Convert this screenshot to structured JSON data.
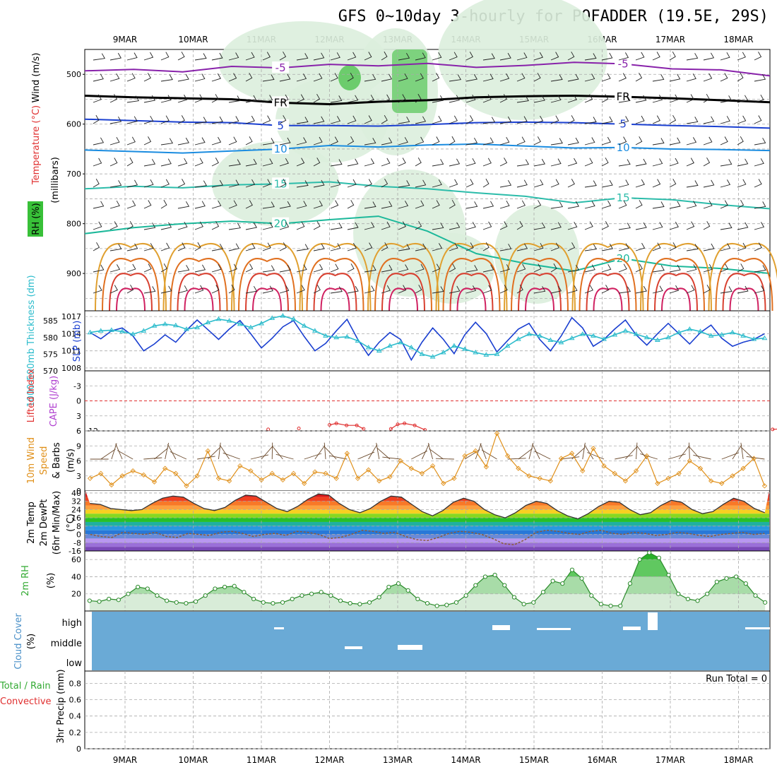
{
  "title": "GFS 0~10day 3-hourly for POFADDER (19.5E, 29S)",
  "dates": [
    "9MAR",
    "10MAR",
    "11MAR",
    "12MAR",
    "13MAR",
    "14MAR",
    "15MAR",
    "16MAR",
    "17MAR",
    "18MAR"
  ],
  "run_total": "Run Total = 0",
  "colors": {
    "grid": "#aaaaaa",
    "slp": "#1a3fd0",
    "thickness": "#2cbccc",
    "li": "#e03030",
    "wind": "#e0901a",
    "barb": "#6b4a2c",
    "rh": "#33aa33",
    "cloud": "#6aaad6",
    "purple": "#8822aa"
  },
  "chart_data": [
    {
      "type": "contour",
      "panel": "upper-air",
      "ylabel": "(millibars)",
      "side_labels": [
        "Wind (m/s)",
        "Temperature (°C)",
        "RH (%)"
      ],
      "y_ticks": [
        500,
        600,
        700,
        800,
        900
      ],
      "ylim": [
        450,
        975
      ],
      "y_scale": "pressure-reversed",
      "grid": true,
      "x_dashed_levels": [
        550,
        650,
        750,
        850,
        950
      ],
      "isotherms": [
        {
          "label": "-5",
          "color": "#8822aa",
          "levels": [
            493,
            490,
            495,
            484,
            487,
            480,
            483,
            478,
            486,
            482,
            476,
            479,
            489,
            491,
            503
          ]
        },
        {
          "label": "FR",
          "color": "#000000",
          "levels": [
            543,
            546,
            548,
            550,
            557,
            560,
            555,
            552,
            546,
            544,
            543,
            545,
            548,
            552,
            556
          ]
        },
        {
          "label": "5",
          "color": "#1a3fd0",
          "levels": [
            590,
            593,
            596,
            597,
            603,
            603,
            604,
            601,
            597,
            596,
            597,
            600,
            603,
            605,
            608
          ]
        },
        {
          "label": "10",
          "color": "#1a8ce0",
          "levels": [
            652,
            655,
            658,
            654,
            650,
            643,
            646,
            642,
            640,
            644,
            648,
            647,
            650,
            651,
            653
          ]
        },
        {
          "label": "15",
          "color": "#2cbcaa",
          "levels": [
            730,
            725,
            728,
            722,
            720,
            716,
            725,
            730,
            738,
            745,
            758,
            748,
            752,
            762,
            770
          ]
        },
        {
          "label": "20",
          "color": "#1cb89a",
          "levels": [
            820,
            808,
            800,
            795,
            800,
            792,
            785,
            815,
            860,
            880,
            895,
            870,
            885,
            890,
            900
          ]
        }
      ],
      "contour_labels": [
        "-5",
        "-5",
        "FR",
        "FR",
        "FR",
        "5",
        "5",
        "10",
        "10",
        "15",
        "15",
        "20"
      ]
    },
    {
      "type": "line",
      "panel": "pressure-thickness",
      "ylabel_left": "1000-500mb Thickness (dm)",
      "ylabel_right": "SLP (mb)",
      "y_ticks_left": [
        570,
        575,
        580,
        585
      ],
      "y_ticks_right": [
        1008,
        1011,
        1014,
        1017
      ],
      "ylim_left": [
        570,
        588
      ],
      "ylim_right": [
        1007.5,
        1018
      ],
      "series": [
        {
          "name": "SLP (mb)",
          "axis": "right",
          "color": "#1a3fd0",
          "values": [
            1014.2,
            1013.1,
            1014.5,
            1015.0,
            1013.6,
            1011.0,
            1012.2,
            1013.8,
            1012.5,
            1014.6,
            1016.4,
            1014.7,
            1013.0,
            1014.8,
            1016.3,
            1014.0,
            1011.5,
            1013.2,
            1015.2,
            1016.3,
            1013.5,
            1011.0,
            1012.3,
            1014.5,
            1016.5,
            1013.0,
            1010.2,
            1012.5,
            1014.2,
            1013.0,
            1009.4,
            1012.5,
            1015.0,
            1013.0,
            1010.5,
            1013.8,
            1016.0,
            1014.0,
            1010.8,
            1012.8,
            1014.8,
            1015.8,
            1013.0,
            1011.0,
            1013.6,
            1016.8,
            1015.0,
            1011.8,
            1013.0,
            1014.8,
            1016.4,
            1013.8,
            1012.0,
            1014.0,
            1015.8,
            1014.0,
            1012.2,
            1014.2,
            1015.5,
            1013.2,
            1011.8,
            1012.5,
            1013.0,
            1014.0
          ]
        },
        {
          "name": "1000-500mb Thickness (dm)",
          "axis": "left",
          "color": "#2cbccc",
          "values": [
            581.5,
            582.0,
            582.2,
            581.8,
            581.0,
            582.0,
            583.5,
            584.0,
            583.6,
            582.5,
            583.0,
            584.5,
            585.5,
            585.0,
            584.0,
            583.0,
            584.2,
            585.8,
            586.5,
            585.5,
            583.5,
            582.0,
            580.5,
            580.0,
            580.2,
            579.0,
            577.0,
            576.0,
            577.5,
            578.5,
            577.0,
            575.0,
            574.2,
            575.5,
            577.5,
            576.5,
            575.5,
            574.8,
            575.0,
            577.5,
            579.5,
            581.0,
            580.5,
            579.2,
            578.5,
            579.8,
            581.0,
            580.5,
            579.5,
            580.8,
            582.0,
            581.0,
            580.0,
            579.2,
            580.0,
            581.5,
            582.5,
            581.8,
            580.5,
            580.8,
            581.5,
            580.5,
            579.5,
            579.8
          ]
        }
      ]
    },
    {
      "type": "line",
      "panel": "stability",
      "ylabel_left": "Lifted Index",
      "ylabel_right": "CAPE (J/kg)",
      "y_ticks": [
        -3,
        0,
        3,
        6
      ],
      "ylim": [
        -6,
        6
      ],
      "zero_line": 0,
      "series": [
        {
          "name": "Lifted Index",
          "color": "#e03030",
          "points": [
            [
              2.1,
              5.7
            ],
            [
              2.55,
              5.5
            ],
            [
              3.0,
              4.8
            ],
            [
              3.1,
              4.5
            ],
            [
              3.25,
              4.9
            ],
            [
              3.4,
              4.9
            ],
            [
              3.5,
              5.6
            ],
            [
              3.9,
              5.6
            ],
            [
              4.0,
              4.7
            ],
            [
              4.1,
              4.5
            ],
            [
              4.25,
              4.9
            ],
            [
              4.4,
              5.8
            ],
            [
              9.5,
              5.7
            ],
            [
              9.6,
              5.6
            ]
          ]
        }
      ]
    },
    {
      "type": "line",
      "panel": "surface-wind",
      "ylabel": "10m Wind Speed & Barbs (m/s)",
      "y_ticks": [
        0,
        3,
        6,
        9,
        12
      ],
      "ylim": [
        0,
        12
      ],
      "series": [
        {
          "name": "10m Wind Speed",
          "color": "#e0901a",
          "values": [
            2.5,
            3.5,
            1.2,
            3.0,
            4.0,
            3.2,
            1.8,
            4.5,
            3.5,
            1.0,
            3.0,
            8.0,
            2.5,
            2.0,
            5.0,
            4.0,
            2.2,
            3.5,
            2.2,
            3.5,
            1.5,
            3.8,
            3.5,
            2.5,
            7.5,
            2.5,
            4.2,
            2.0,
            2.8,
            6.0,
            4.5,
            3.5,
            5.0,
            1.5,
            2.5,
            7.0,
            8.0,
            4.8,
            11.5,
            7.0,
            4.5,
            3.0,
            2.5,
            2.0,
            6.5,
            7.5,
            4.0,
            8.5,
            5.0,
            3.5,
            2.0,
            4.0,
            7.0,
            1.5,
            2.5,
            3.5,
            6.0,
            4.5,
            2.0,
            1.5,
            3.0,
            4.5,
            6.5,
            1.0
          ]
        }
      ]
    },
    {
      "type": "area",
      "panel": "temperature",
      "ylabel": "2m Temp 2m DewPt (6hr Min/Max) (°C)",
      "y_ticks": [
        -16,
        -8,
        0,
        8,
        16,
        24,
        32,
        40
      ],
      "ylim": [
        -16,
        42
      ],
      "series": [
        {
          "name": "2m Temp",
          "values": [
            30,
            29,
            25,
            24,
            23,
            24,
            30,
            35,
            37,
            36,
            30,
            25,
            23,
            26,
            33,
            38,
            37,
            31,
            25,
            22,
            27,
            34,
            39,
            38,
            30,
            24,
            21,
            25,
            32,
            37,
            36,
            29,
            22,
            18,
            23,
            31,
            35,
            32,
            24,
            19,
            16,
            21,
            28,
            32,
            30,
            23,
            18,
            15,
            20,
            27,
            32,
            31,
            24,
            19,
            21,
            28,
            33,
            31,
            24,
            20,
            22,
            29,
            35,
            32,
            25,
            21
          ]
        },
        {
          "name": "2m DewPt",
          "values": [
            0,
            -2,
            -3,
            2,
            1,
            0,
            2,
            -2,
            -3,
            1,
            0,
            -1,
            2,
            3,
            1,
            -2,
            0,
            1,
            -1,
            3,
            2,
            0,
            -4,
            -3,
            0,
            4,
            3,
            1,
            2,
            -2,
            -5,
            -6,
            -3,
            1,
            3,
            2,
            0,
            -4,
            -9,
            -10,
            -5,
            2,
            4,
            3,
            1,
            0,
            3,
            4,
            1,
            0,
            2,
            1,
            -1,
            0,
            2,
            1,
            -1,
            -2,
            0,
            1,
            2,
            0,
            1
          ]
        }
      ]
    },
    {
      "type": "area",
      "panel": "humidity",
      "ylabel": "2m RH (%)",
      "y_ticks": [
        20,
        40,
        60
      ],
      "ylim": [
        0,
        70
      ],
      "series": [
        {
          "name": "2m RH",
          "values": [
            12,
            11,
            14,
            13,
            20,
            28,
            26,
            18,
            12,
            10,
            9,
            11,
            18,
            26,
            28,
            29,
            22,
            14,
            10,
            9,
            10,
            14,
            18,
            20,
            22,
            18,
            12,
            9,
            8,
            10,
            16,
            28,
            32,
            24,
            14,
            9,
            6,
            7,
            10,
            18,
            30,
            40,
            42,
            30,
            16,
            8,
            10,
            22,
            35,
            32,
            48,
            38,
            18,
            8,
            6,
            6,
            32,
            60,
            68,
            62,
            42,
            20,
            14,
            12,
            20,
            34,
            38,
            40,
            32,
            18,
            10
          ]
        }
      ]
    },
    {
      "type": "bar",
      "panel": "cloud-cover",
      "ylabel": "Cloud Cover (%)",
      "categories": [
        "high",
        "middle",
        "low"
      ],
      "background_color": "#6aaad6"
    },
    {
      "type": "bar",
      "panel": "precip",
      "ylabel_left": "Total / Rain",
      "ylabel_right": "Convective",
      "ylabel": "3hr Precip (mm)",
      "y_ticks": [
        0,
        0.2,
        0.4,
        0.6,
        0.8
      ],
      "ylim": [
        0,
        0.95
      ],
      "values": []
    }
  ]
}
